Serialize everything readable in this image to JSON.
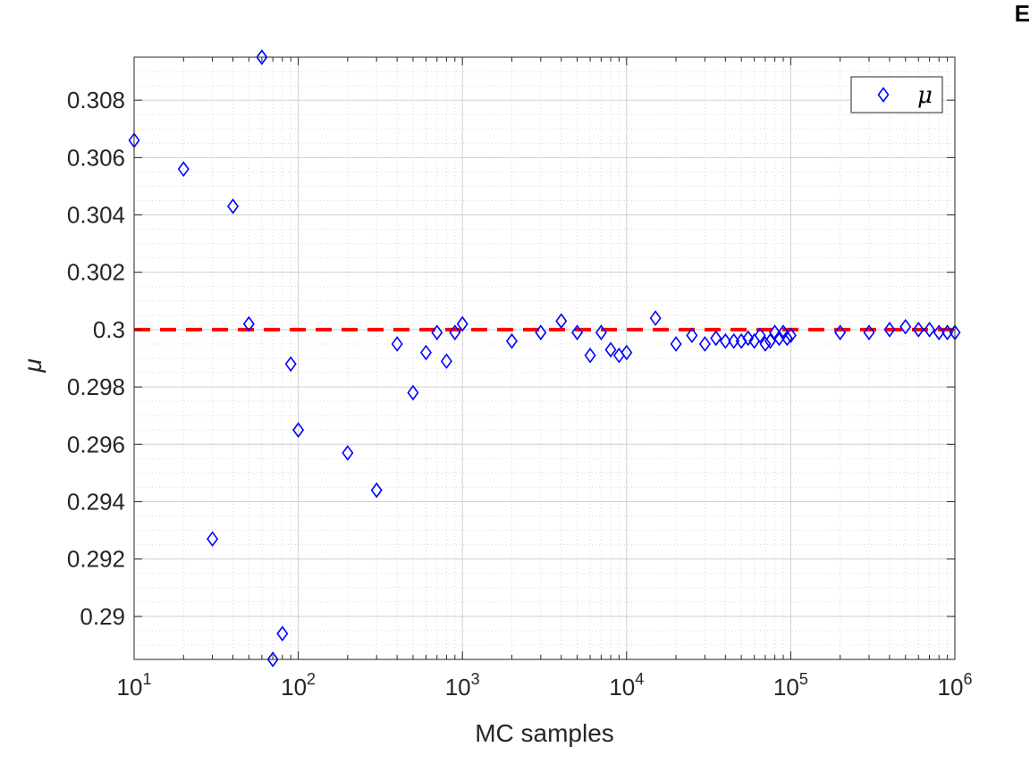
{
  "corner_label": "E",
  "chart_data": {
    "type": "scatter",
    "title": "",
    "xlabel": "MC samples",
    "ylabel": "μ",
    "xscale": "log",
    "xlim": [
      10,
      1000000
    ],
    "ylim": [
      0.2885,
      0.3095
    ],
    "x_ticks": [
      {
        "value": 10,
        "base": "10",
        "exp": "1"
      },
      {
        "value": 100,
        "base": "10",
        "exp": "2"
      },
      {
        "value": 1000,
        "base": "10",
        "exp": "3"
      },
      {
        "value": 10000,
        "base": "10",
        "exp": "4"
      },
      {
        "value": 100000,
        "base": "10",
        "exp": "5"
      },
      {
        "value": 1000000,
        "base": "10",
        "exp": "6"
      }
    ],
    "y_ticks": [
      {
        "value": 0.29,
        "label": "0.29"
      },
      {
        "value": 0.292,
        "label": "0.292"
      },
      {
        "value": 0.294,
        "label": "0.294"
      },
      {
        "value": 0.296,
        "label": "0.296"
      },
      {
        "value": 0.298,
        "label": "0.298"
      },
      {
        "value": 0.3,
        "label": "0.3"
      },
      {
        "value": 0.302,
        "label": "0.302"
      },
      {
        "value": 0.304,
        "label": "0.304"
      },
      {
        "value": 0.306,
        "label": "0.306"
      },
      {
        "value": 0.308,
        "label": "0.308"
      }
    ],
    "grid": true,
    "minor_grid": true,
    "legend_position": "top-right",
    "series": [
      {
        "name": "μ",
        "marker": "diamond",
        "color": "#0000ff",
        "x": [
          10,
          20,
          30,
          40,
          50,
          60,
          70,
          80,
          90,
          100,
          200,
          300,
          400,
          500,
          600,
          700,
          800,
          900,
          1000,
          2000,
          3000,
          4000,
          5000,
          6000,
          7000,
          8000,
          9000,
          10000,
          15000,
          20000,
          25000,
          30000,
          35000,
          40000,
          45000,
          50000,
          55000,
          60000,
          65000,
          70000,
          75000,
          80000,
          85000,
          90000,
          95000,
          100000,
          200000,
          300000,
          400000,
          500000,
          600000,
          700000,
          800000,
          900000,
          1000000
        ],
        "y": [
          0.3066,
          0.3056,
          0.2927,
          0.3043,
          0.3002,
          0.3095,
          0.2885,
          0.2894,
          0.2988,
          0.2965,
          0.2957,
          0.2944,
          0.2995,
          0.2978,
          0.2992,
          0.2999,
          0.2989,
          0.2999,
          0.3002,
          0.2996,
          0.2999,
          0.3003,
          0.2999,
          0.2991,
          0.2999,
          0.2993,
          0.2991,
          0.2992,
          0.3004,
          0.2995,
          0.2998,
          0.2995,
          0.2997,
          0.2996,
          0.2996,
          0.2996,
          0.2997,
          0.2996,
          0.2998,
          0.2995,
          0.2996,
          0.2999,
          0.2997,
          0.2999,
          0.2997,
          0.2998,
          0.2999,
          0.2999,
          0.3,
          0.3001,
          0.3,
          0.3,
          0.2999,
          0.2999,
          0.2999
        ]
      }
    ],
    "reference_line": {
      "y": 0.3,
      "color": "#ff0000",
      "style": "dashed"
    }
  }
}
